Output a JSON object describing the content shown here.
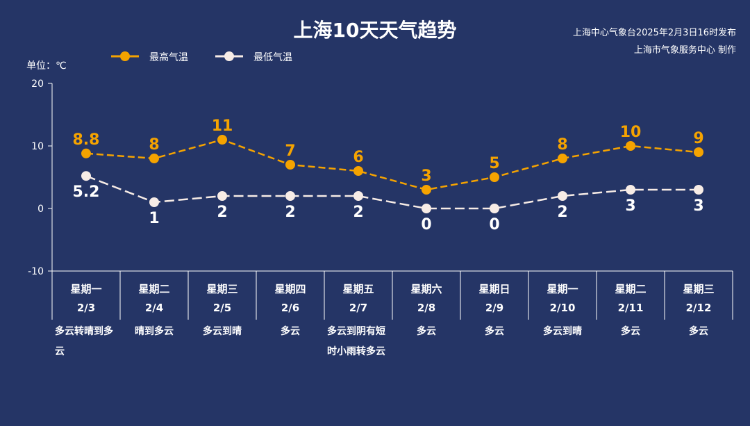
{
  "header": {
    "title": "上海10天天气趋势",
    "publish_line": "上海中心气象台2025年2月3日16时发布",
    "producer_line": "上海市气象服务中心 制作"
  },
  "chart_data": {
    "type": "line",
    "title": "上海10天天气趋势",
    "ylabel": "单位：℃",
    "ylim": [
      -10,
      20
    ],
    "yticks": [
      "20",
      "10",
      "0",
      "-10"
    ],
    "legend_position": "top-left",
    "categories": [
      "2/3",
      "2/4",
      "2/5",
      "2/6",
      "2/7",
      "2/8",
      "2/9",
      "2/10",
      "2/11",
      "2/12"
    ],
    "weekdays": [
      "星期一",
      "星期二",
      "星期三",
      "星期四",
      "星期五",
      "星期六",
      "星期日",
      "星期一",
      "星期二",
      "星期三"
    ],
    "weather": [
      "多云转晴到多云",
      "晴到多云",
      "多云到晴",
      "多云",
      "多云到阴有短时小雨转多云",
      "多云",
      "多云",
      "多云到晴",
      "多云",
      "多云"
    ],
    "series": [
      {
        "name": "最高气温",
        "color": "#f5a300",
        "values": [
          8.8,
          8,
          11,
          7,
          6,
          3,
          5,
          8,
          10,
          9
        ],
        "labels": [
          "8.8",
          "8",
          "11",
          "7",
          "6",
          "3",
          "5",
          "8",
          "10",
          "9"
        ]
      },
      {
        "name": "最低气温",
        "color": "#f7ece6",
        "values": [
          5.2,
          1,
          2,
          2,
          2,
          0,
          0,
          2,
          3,
          3
        ],
        "labels": [
          "5.2",
          "1",
          "2",
          "2",
          "2",
          "0",
          "0",
          "2",
          "3",
          "3"
        ]
      }
    ]
  }
}
